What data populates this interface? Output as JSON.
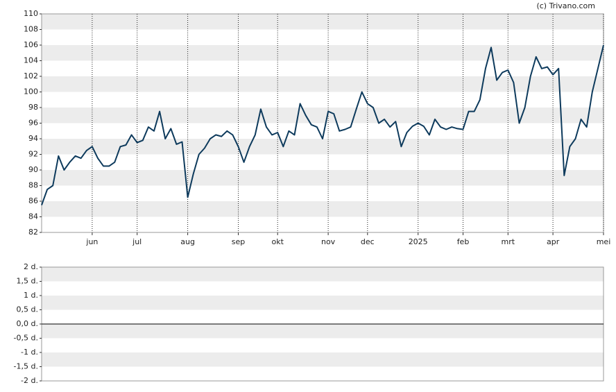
{
  "chart_data": [
    {
      "type": "line",
      "source": "(c) Trivano.com",
      "grid": true,
      "categories": [
        null,
        null,
        null,
        null,
        null,
        null,
        null,
        null,
        null,
        "jun",
        null,
        null,
        null,
        null,
        null,
        null,
        null,
        "jul",
        null,
        null,
        null,
        null,
        null,
        null,
        null,
        null,
        "aug",
        null,
        null,
        null,
        null,
        null,
        null,
        null,
        null,
        "sep",
        null,
        null,
        null,
        null,
        null,
        null,
        "okt",
        null,
        null,
        null,
        null,
        null,
        null,
        null,
        null,
        "nov",
        null,
        null,
        null,
        null,
        null,
        null,
        "dec",
        null,
        null,
        null,
        null,
        null,
        null,
        null,
        null,
        "2025",
        null,
        null,
        null,
        null,
        null,
        null,
        null,
        "feb",
        null,
        null,
        null,
        null,
        null,
        null,
        null,
        "mrt",
        null,
        null,
        null,
        null,
        null,
        null,
        null,
        "apr",
        null,
        null,
        null,
        null,
        null,
        null,
        null,
        null,
        "mei"
      ],
      "series": [
        {
          "color": "#0d3a5c",
          "values": [
            85.5,
            87.5,
            88,
            91.8,
            90,
            91,
            91.8,
            91.5,
            92.5,
            93,
            91.5,
            90.5,
            90.5,
            91,
            93,
            93.2,
            94.5,
            93.5,
            93.8,
            95.5,
            95,
            97.5,
            94,
            95.3,
            93.3,
            93.6,
            86.5,
            89.5,
            92,
            92.8,
            94,
            94.5,
            94.3,
            95,
            94.5,
            93,
            91,
            93,
            94.5,
            97.8,
            95.5,
            94.5,
            94.8,
            93,
            95,
            94.5,
            98.5,
            97,
            95.8,
            95.5,
            94,
            97.5,
            97.2,
            95,
            95.2,
            95.5,
            97.8,
            100,
            98.5,
            98,
            96,
            96.5,
            95.5,
            96.2,
            93,
            94.8,
            95.6,
            96,
            95.6,
            94.5,
            96.5,
            95.5,
            95.2,
            95.5,
            95.3,
            95.2,
            97.5,
            97.5,
            99,
            103,
            105.7,
            101.5,
            102.5,
            102.8,
            101.2,
            96,
            98,
            102,
            104.5,
            103,
            103.2,
            102.2,
            103,
            89.3,
            93,
            94,
            96.5,
            95.5,
            100,
            103,
            106
          ]
        }
      ],
      "ylim": [
        82,
        110
      ],
      "yticks": [
        82,
        84,
        86,
        88,
        90,
        92,
        94,
        96,
        98,
        100,
        102,
        104,
        106,
        108,
        110
      ]
    },
    {
      "type": "bar",
      "grid": true,
      "ylim": [
        -2,
        2
      ],
      "yticks": [
        {
          "value": -2,
          "label": "-2 d."
        },
        {
          "value": -1.5,
          "label": "-1,5 d."
        },
        {
          "value": -1,
          "label": "-1 d."
        },
        {
          "value": -0.5,
          "label": "-0,5 d."
        },
        {
          "value": 0,
          "label": "0,0 d."
        },
        {
          "value": 0.5,
          "label": "0,5 d."
        },
        {
          "value": 1,
          "label": "1 d."
        },
        {
          "value": 1.5,
          "label": "1,5 d."
        },
        {
          "value": 2,
          "label": "2 d."
        }
      ]
    }
  ]
}
